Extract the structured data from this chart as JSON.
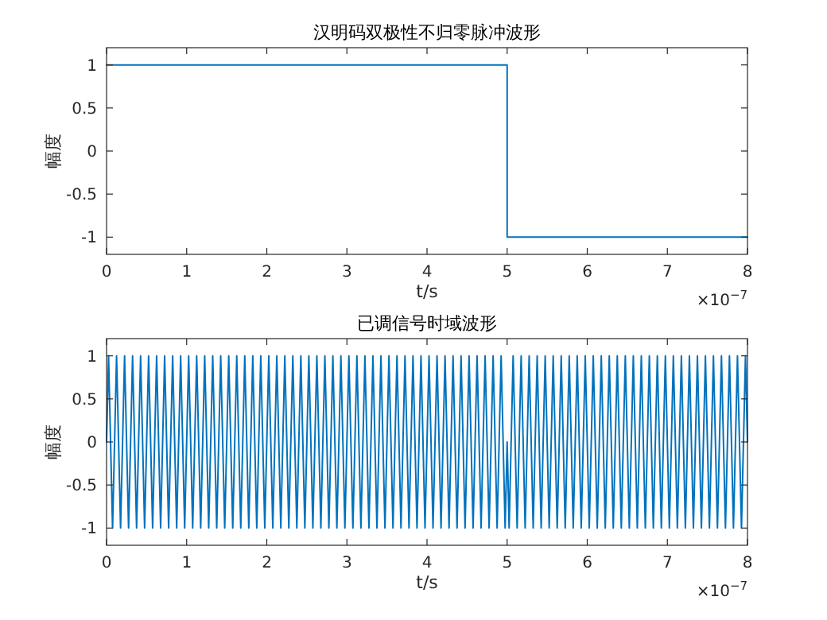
{
  "chart_data": [
    {
      "type": "line",
      "title": "汉明码双极性不归零脉冲波形",
      "xlabel": "t/s",
      "ylabel": "幅度",
      "annotations": [
        "×10$^{−7}$"
      ],
      "series": [
        {
          "color": "#0072bd",
          "x": [
            0,
            5,
            5,
            8
          ],
          "values": [
            1,
            1,
            -1,
            -1
          ]
        }
      ],
      "xlim": [
        0,
        8
      ],
      "xticks": [
        0,
        1,
        2,
        3,
        4,
        5,
        6,
        7,
        8
      ],
      "ylim": [
        -1.2,
        1.2
      ],
      "yticks": [
        -1,
        -0.5,
        0,
        0.5,
        1
      ],
      "grid": false
    },
    {
      "type": "line",
      "title": "已调信号时域波形",
      "xlabel": "t/s",
      "ylabel": "幅度",
      "annotations": [
        "×10$^{−7}$"
      ],
      "series": [
        {
          "color": "#0072bd",
          "x": [
            0,
            0.025,
            0.075,
            0.125,
            0.175,
            0.225,
            0.275,
            0.325,
            0.375,
            0.425,
            0.475,
            0.525,
            0.575,
            0.625,
            0.675,
            0.725,
            0.775,
            0.825,
            0.875,
            0.925,
            0.975,
            1.025,
            1.075,
            1.125,
            1.175,
            1.225,
            1.275,
            1.325,
            1.375,
            1.425,
            1.475,
            1.525,
            1.575,
            1.625,
            1.675,
            1.725,
            1.775,
            1.825,
            1.875,
            1.925,
            1.975,
            2.025,
            2.075,
            2.125,
            2.175,
            2.225,
            2.275,
            2.325,
            2.375,
            2.425,
            2.475,
            2.525,
            2.575,
            2.625,
            2.675,
            2.725,
            2.775,
            2.825,
            2.875,
            2.925,
            2.975,
            3.025,
            3.075,
            3.125,
            3.175,
            3.225,
            3.275,
            3.325,
            3.375,
            3.425,
            3.475,
            3.525,
            3.575,
            3.625,
            3.675,
            3.725,
            3.775,
            3.825,
            3.875,
            3.925,
            3.975,
            4.025,
            4.075,
            4.125,
            4.175,
            4.225,
            4.275,
            4.325,
            4.375,
            4.425,
            4.475,
            4.525,
            4.575,
            4.625,
            4.675,
            4.725,
            4.775,
            4.825,
            4.875,
            4.925,
            4.975,
            5,
            5.025,
            5.075,
            5.125,
            5.175,
            5.225,
            5.275,
            5.325,
            5.375,
            5.425,
            5.475,
            5.525,
            5.575,
            5.625,
            5.675,
            5.725,
            5.775,
            5.825,
            5.875,
            5.925,
            5.975,
            6.025,
            6.075,
            6.125,
            6.175,
            6.225,
            6.275,
            6.325,
            6.375,
            6.425,
            6.475,
            6.525,
            6.575,
            6.625,
            6.675,
            6.725,
            6.775,
            6.825,
            6.875,
            6.925,
            6.975,
            7.025,
            7.075,
            7.125,
            7.175,
            7.225,
            7.275,
            7.325,
            7.375,
            7.425,
            7.475,
            7.525,
            7.575,
            7.625,
            7.675,
            7.725,
            7.775,
            7.825,
            7.875,
            7.925,
            7.975,
            8
          ],
          "values": [
            0,
            1,
            -1,
            1,
            -1,
            1,
            -1,
            1,
            -1,
            1,
            -1,
            1,
            -1,
            1,
            -1,
            1,
            -1,
            1,
            -1,
            1,
            -1,
            1,
            -1,
            1,
            -1,
            1,
            -1,
            1,
            -1,
            1,
            -1,
            1,
            -1,
            1,
            -1,
            1,
            -1,
            1,
            -1,
            1,
            -1,
            1,
            -1,
            1,
            -1,
            1,
            -1,
            1,
            -1,
            1,
            -1,
            1,
            -1,
            1,
            -1,
            1,
            -1,
            1,
            -1,
            1,
            -1,
            1,
            -1,
            1,
            -1,
            1,
            -1,
            1,
            -1,
            1,
            -1,
            1,
            -1,
            1,
            -1,
            1,
            -1,
            1,
            -1,
            1,
            -1,
            1,
            -1,
            1,
            -1,
            1,
            -1,
            1,
            -1,
            1,
            -1,
            1,
            -1,
            1,
            -1,
            1,
            -1,
            1,
            -1,
            1,
            -1,
            0,
            -1,
            1,
            -1,
            1,
            -1,
            1,
            -1,
            1,
            -1,
            1,
            -1,
            1,
            -1,
            1,
            -1,
            1,
            -1,
            1,
            -1,
            1,
            -1,
            1,
            -1,
            1,
            -1,
            1,
            -1,
            1,
            -1,
            1,
            -1,
            1,
            -1,
            1,
            -1,
            1,
            -1,
            1,
            -1,
            1,
            -1,
            1,
            -1,
            1,
            -1,
            1,
            -1,
            1,
            -1,
            1,
            -1,
            1,
            -1,
            1,
            -1,
            1,
            -1,
            1,
            -1,
            1,
            0
          ]
        }
      ],
      "xlim": [
        0,
        8
      ],
      "xticks": [
        0,
        1,
        2,
        3,
        4,
        5,
        6,
        7,
        8
      ],
      "ylim": [
        -1.2,
        1.2
      ],
      "yticks": [
        -1,
        -0.5,
        0,
        0.5,
        1
      ],
      "grid": false
    }
  ]
}
